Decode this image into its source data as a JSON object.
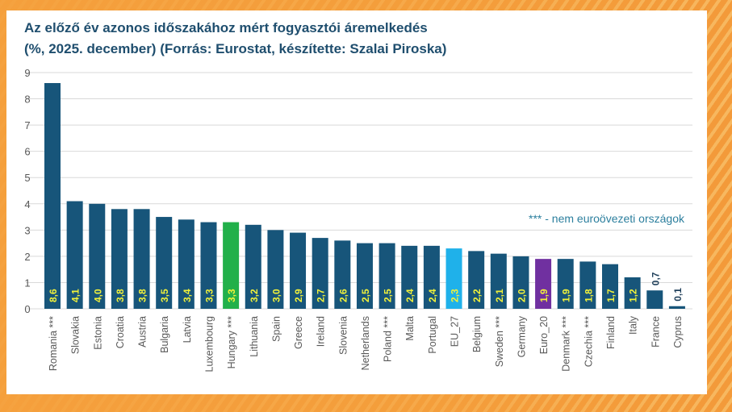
{
  "chart_data": {
    "type": "bar",
    "title": "Az előző év azonos időszakához mért fogyasztói áremelkedés",
    "subtitle": "(%, 2025. december) (Forrás: Eurostat, készítette: Szalai Piroska)",
    "annotation": "*** - nem euroövezeti országok",
    "ylim": [
      0,
      9
    ],
    "yticks": [
      0,
      1,
      2,
      3,
      4,
      5,
      6,
      7,
      8,
      9
    ],
    "grid": true,
    "categories": [
      "Romania ***",
      "Slovakia",
      "Estonia",
      "Croatia",
      "Austria",
      "Bulgaria",
      "Latvia",
      "Luxembourg",
      "Hungary ***",
      "Lithuania",
      "Spain",
      "Greece",
      "Ireland",
      "Slovenia",
      "Netherlands",
      "Poland ***",
      "Malta",
      "Portugal",
      "EU_27",
      "Belgium",
      "Sweden ***",
      "Germany",
      "Euro_20",
      "Denmark ***",
      "Czechia ***",
      "Finland",
      "Italy",
      "France",
      "Cyprus"
    ],
    "values": [
      8.6,
      4.1,
      4.0,
      3.8,
      3.8,
      3.5,
      3.4,
      3.3,
      3.3,
      3.2,
      3.0,
      2.9,
      2.7,
      2.6,
      2.5,
      2.5,
      2.4,
      2.4,
      2.3,
      2.2,
      2.1,
      2.0,
      1.9,
      1.9,
      1.8,
      1.7,
      1.2,
      0.7,
      0.1
    ],
    "data_labels": [
      "8,6",
      "4,1",
      "4,0",
      "3,8",
      "3,8",
      "3,5",
      "3,4",
      "3,3",
      "3,3",
      "3,2",
      "3,0",
      "2,9",
      "2,7",
      "2,6",
      "2,5",
      "2,5",
      "2,4",
      "2,4",
      "2,3",
      "2,2",
      "2,1",
      "2,0",
      "1,9",
      "1,9",
      "1,8",
      "1,7",
      "1,2",
      "0,7",
      "0,1"
    ],
    "colors": {
      "default": "#17557a",
      "Hungary ***": "#22b04a",
      "EU_27": "#1fb1ea",
      "Euro_20": "#7030a0",
      "label": "#f2f23a"
    }
  }
}
